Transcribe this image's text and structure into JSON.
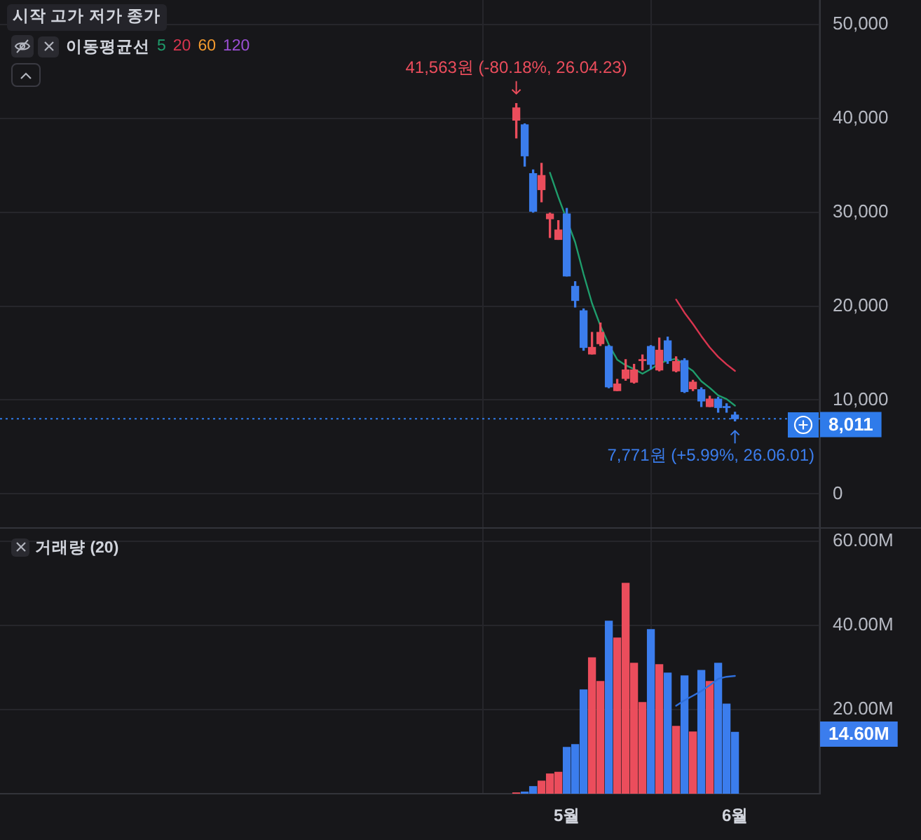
{
  "chart_data": [
    {
      "type": "candlestick",
      "legend_title": "이동평균선",
      "legend": "top left",
      "categories": [
        null,
        null,
        null,
        null,
        null,
        null,
        null,
        null,
        null,
        null,
        null,
        null,
        null,
        null,
        null,
        null,
        null,
        null,
        null,
        null,
        null,
        null,
        null,
        null,
        null,
        null,
        null
      ],
      "ohlc": [
        [
          39800,
          41563,
          37900,
          41100
        ],
        [
          39300,
          39400,
          34900,
          36000
        ],
        [
          34100,
          34500,
          30000,
          30100
        ],
        [
          32400,
          35200,
          31100,
          33900
        ],
        [
          29300,
          29900,
          27300,
          29800
        ],
        [
          27100,
          29100,
          27100,
          28100
        ],
        [
          29800,
          30400,
          23200,
          23200
        ],
        [
          22100,
          22600,
          19900,
          20600
        ],
        [
          19500,
          19700,
          15300,
          15600
        ],
        [
          14900,
          17200,
          14900,
          15600
        ],
        [
          16000,
          18200,
          15800,
          17200
        ],
        [
          15700,
          15800,
          11300,
          11400
        ],
        [
          11000,
          12200,
          11000,
          11700
        ],
        [
          12300,
          14300,
          12100,
          13200
        ],
        [
          11900,
          13800,
          11800,
          13200
        ],
        [
          14200,
          14800,
          13200,
          14300
        ],
        [
          15700,
          15800,
          13300,
          13800
        ],
        [
          13200,
          16600,
          13100,
          15300
        ],
        [
          16300,
          16700,
          13900,
          14200
        ],
        [
          13100,
          14600,
          13000,
          14100
        ],
        [
          14200,
          14400,
          10800,
          10900
        ],
        [
          11200,
          12100,
          11000,
          11900
        ],
        [
          11100,
          11300,
          9300,
          9900
        ],
        [
          9300,
          10400,
          9300,
          10100
        ],
        [
          10100,
          10300,
          8700,
          9200
        ],
        [
          9300,
          9600,
          8700,
          9200
        ],
        [
          8400,
          8700,
          7771,
          8011
        ]
      ],
      "colors": [
        "#eb4d5c",
        "#3b7ded",
        "#3b7ded",
        "#eb4d5c",
        "#eb4d5c",
        "#eb4d5c",
        "#3b7ded",
        "#3b7ded",
        "#3b7ded",
        "#eb4d5c",
        "#eb4d5c",
        "#3b7ded",
        "#eb4d5c",
        "#eb4d5c",
        "#eb4d5c",
        "#eb4d5c",
        "#3b7ded",
        "#eb4d5c",
        "#3b7ded",
        "#eb4d5c",
        "#3b7ded",
        "#eb4d5c",
        "#3b7ded",
        "#eb4d5c",
        "#3b7ded",
        "#3b7ded",
        "#3b7ded"
      ],
      "series": [
        {
          "name": "5",
          "type": "line",
          "color": "#1f9d6c",
          "values": [
            null,
            null,
            null,
            null,
            34200,
            31600,
            null,
            26800,
            23400,
            20300,
            17900,
            15900,
            14300,
            13700,
            13300,
            12800,
            13300,
            13900,
            14200,
            14400,
            13700,
            13100,
            12000,
            11300,
            10500,
            10100,
            9400
          ]
        },
        {
          "name": "20",
          "type": "line",
          "color": "#d8354f",
          "values": [
            null,
            null,
            null,
            null,
            null,
            null,
            null,
            null,
            null,
            null,
            null,
            null,
            null,
            null,
            null,
            null,
            null,
            null,
            null,
            20700,
            19300,
            18100,
            16800,
            15600,
            14600,
            13800,
            13100
          ]
        },
        {
          "name": "60",
          "type": "line",
          "color": "#f2992e",
          "values": [
            null,
            null,
            null,
            null,
            null,
            null,
            null,
            null,
            null,
            null,
            null,
            null,
            null,
            null,
            null,
            null,
            null,
            null,
            null,
            null,
            null,
            null,
            null,
            null,
            null,
            null,
            null
          ]
        },
        {
          "name": "120",
          "type": "line",
          "color": "#9b4fd4",
          "values": [
            null,
            null,
            null,
            null,
            null,
            null,
            null,
            null,
            null,
            null,
            null,
            null,
            null,
            null,
            null,
            null,
            null,
            null,
            null,
            null,
            null,
            null,
            null,
            null,
            null,
            null,
            null
          ]
        }
      ],
      "ylim": [
        -3550,
        52590
      ],
      "yticks": [
        0,
        {
          "value": 10000,
          "label": "10,000"
        },
        {
          "value": 20000,
          "label": "20,000"
        },
        {
          "value": 30000,
          "label": "30,000"
        },
        {
          "value": 40000,
          "label": "40,000"
        },
        {
          "value": 50000,
          "label": "50,000"
        }
      ],
      "grid": true,
      "tick_labels": "y",
      "annotations": [
        "시작 고가 저가 종가",
        {
          "text": "41,563원 (-80.18%, 26.04.23)",
          "y": 41563
        },
        {
          "text": "7,771원 (+5.99%, 26.06.01)",
          "y": 7771
        }
      ],
      "ref_lines": [
        {
          "axis": "y",
          "value": 8011,
          "label": "8,011",
          "color": "#2f7bea",
          "line_style": "dotted"
        }
      ]
    },
    {
      "type": "bar",
      "categories": [
        null,
        null,
        null,
        null,
        null,
        null,
        "5월",
        null,
        null,
        null,
        null,
        null,
        null,
        null,
        null,
        null,
        null,
        null,
        null,
        null,
        null,
        null,
        null,
        null,
        null,
        null,
        "6월"
      ],
      "series": [
        {
          "colors": [
            "#eb4d5c",
            "#3b7ded",
            "#3b7ded",
            "#eb4d5c",
            "#eb4d5c",
            "#eb4d5c",
            "#3b7ded",
            "#3b7ded",
            "#3b7ded",
            "#eb4d5c",
            "#eb4d5c",
            "#3b7ded",
            "#eb4d5c",
            "#eb4d5c",
            "#eb4d5c",
            "#eb4d5c",
            "#3b7ded",
            "#eb4d5c",
            "#3b7ded",
            "#eb4d5c",
            "#3b7ded",
            "#eb4d5c",
            "#3b7ded",
            "#eb4d5c",
            "#3b7ded",
            "#3b7ded",
            "#3b7ded"
          ],
          "values": [
            0.2,
            0.4,
            1.7,
            3.0,
            4.7,
            5.1,
            11.0,
            11.7,
            24.7,
            32.3,
            26.7,
            41.0,
            37.0,
            50.0,
            31.0,
            21.7,
            39.0,
            30.7,
            28.7,
            16.0,
            28.0,
            14.7,
            29.3,
            26.7,
            31.0,
            21.3,
            14.6
          ]
        },
        {
          "type": "line",
          "color": "#2f6fdb",
          "values": [
            null,
            null,
            null,
            null,
            null,
            null,
            null,
            null,
            null,
            null,
            null,
            null,
            null,
            null,
            null,
            null,
            null,
            null,
            null,
            20.9,
            22.2,
            23.3,
            24.4,
            25.8,
            27.3,
            27.8,
            28.0
          ]
        }
      ],
      "ylim": [
        0,
        63
      ],
      "yticks": [
        {
          "value": 20,
          "label": "20.00M"
        },
        {
          "value": 40,
          "label": "40.00M"
        },
        {
          "value": 60,
          "label": "60.00M"
        }
      ],
      "grid": true,
      "annotations": [
        "거래량 (20)",
        "14.60M"
      ]
    }
  ]
}
